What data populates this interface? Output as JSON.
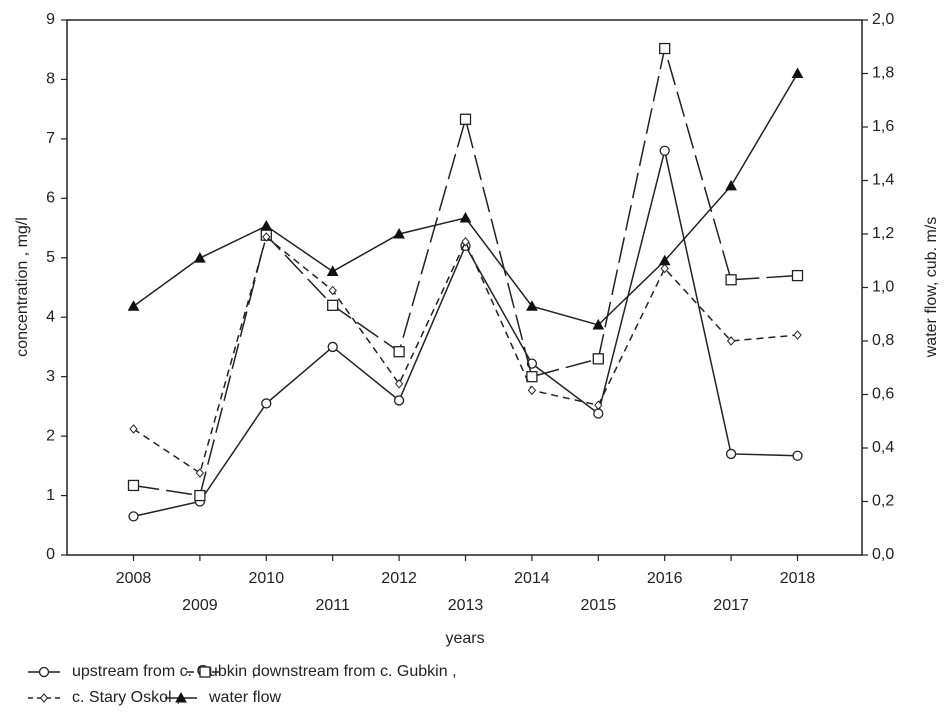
{
  "chart_data": {
    "type": "line",
    "x": [
      2008,
      2009,
      2010,
      2011,
      2012,
      2013,
      2014,
      2015,
      2016,
      2017,
      2018
    ],
    "x_tick_labels": [
      "2008",
      "2009",
      "2010",
      "2011",
      "2012",
      "2013",
      "2014",
      "2015",
      "2016",
      "2017",
      "2018"
    ],
    "xlabel": "years",
    "ylabel": "concentration , mg/l",
    "y2label": "water flow, cub. m/s",
    "ylim": [
      0,
      9
    ],
    "y2lim": [
      0.0,
      2.0
    ],
    "y_tick_labels": [
      "0",
      "1",
      "2",
      "3",
      "4",
      "5",
      "6",
      "7",
      "8",
      "9"
    ],
    "y2_tick_labels": [
      "0,0",
      "0,2",
      "0,4",
      "0,6",
      "0,8",
      "1,0",
      "1,2",
      "1,4",
      "1,6",
      "1,8",
      "2,0"
    ],
    "grid": false,
    "legend_position": "bottom-left",
    "series": [
      {
        "name": "upstream from c. Gubkin ,",
        "axis": "left",
        "marker": "circle",
        "line": "solid",
        "values": [
          0.65,
          0.9,
          2.55,
          3.5,
          2.6,
          5.2,
          3.22,
          2.38,
          6.8,
          1.7,
          1.67
        ]
      },
      {
        "name": "downstream from c. Gubkin ,",
        "axis": "left",
        "marker": "square",
        "line": "long-dash",
        "values": [
          1.17,
          1.0,
          5.38,
          4.2,
          3.42,
          7.33,
          3.0,
          3.3,
          8.52,
          4.63,
          4.7
        ]
      },
      {
        "name": "c. Stary Oskol ,",
        "axis": "left",
        "marker": "diamond",
        "line": "short-dash",
        "values": [
          2.12,
          1.38,
          5.35,
          4.45,
          2.88,
          5.27,
          2.77,
          2.52,
          4.82,
          3.6,
          3.7
        ]
      },
      {
        "name": "water flow",
        "axis": "right",
        "marker": "triangle",
        "line": "solid",
        "values": [
          0.93,
          1.11,
          1.23,
          1.06,
          1.2,
          1.26,
          0.93,
          0.86,
          1.1,
          1.38,
          1.8
        ]
      }
    ]
  }
}
